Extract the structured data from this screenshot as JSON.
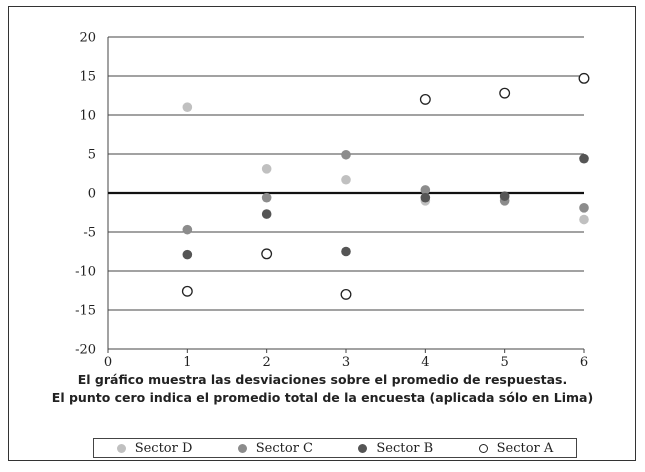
{
  "chart_data": {
    "type": "scatter",
    "title": "",
    "xlabel": "",
    "ylabel": "",
    "xlim": [
      0,
      6
    ],
    "ylim": [
      -20,
      20
    ],
    "x_ticks": [
      0,
      1,
      2,
      3,
      4,
      5,
      6
    ],
    "y_ticks": [
      20,
      15,
      10,
      5,
      0,
      -5,
      -10,
      -15,
      -20
    ],
    "grid": "horizontal",
    "zero_line": true,
    "legend_position": "bottom",
    "series": [
      {
        "name": "Sector D",
        "color": "#c0c0c0",
        "marker": "filled",
        "points": [
          [
            1,
            11.0
          ],
          [
            2,
            3.1
          ],
          [
            3,
            1.7
          ],
          [
            4,
            -1.0
          ],
          [
            5,
            -0.6
          ],
          [
            6,
            -3.4
          ]
        ]
      },
      {
        "name": "Sector C",
        "color": "#8c8c8c",
        "marker": "filled",
        "points": [
          [
            1,
            -4.7
          ],
          [
            2,
            -0.6
          ],
          [
            3,
            4.9
          ],
          [
            4,
            0.4
          ],
          [
            5,
            -1.0
          ],
          [
            6,
            -1.9
          ]
        ]
      },
      {
        "name": "Sector B",
        "color": "#555555",
        "marker": "filled",
        "points": [
          [
            1,
            -7.9
          ],
          [
            2,
            -2.7
          ],
          [
            3,
            -7.5
          ],
          [
            4,
            -0.6
          ],
          [
            5,
            -0.4
          ],
          [
            6,
            4.4
          ]
        ]
      },
      {
        "name": "Sector A",
        "color": "#ffffff",
        "marker": "open",
        "points": [
          [
            1,
            -12.6
          ],
          [
            2,
            -7.8
          ],
          [
            3,
            -13.0
          ],
          [
            4,
            12.0
          ],
          [
            5,
            12.8
          ],
          [
            6,
            14.7
          ]
        ]
      }
    ]
  },
  "caption": {
    "line1": "El gráfico muestra las desviaciones sobre el promedio de respuestas.",
    "line2": "El punto cero indica el promedio total de la encuesta (aplicada sólo en Lima)"
  },
  "legend": {
    "items": [
      {
        "label": "Sector D"
      },
      {
        "label": "Sector C"
      },
      {
        "label": "Sector B"
      },
      {
        "label": "Sector A"
      }
    ]
  }
}
